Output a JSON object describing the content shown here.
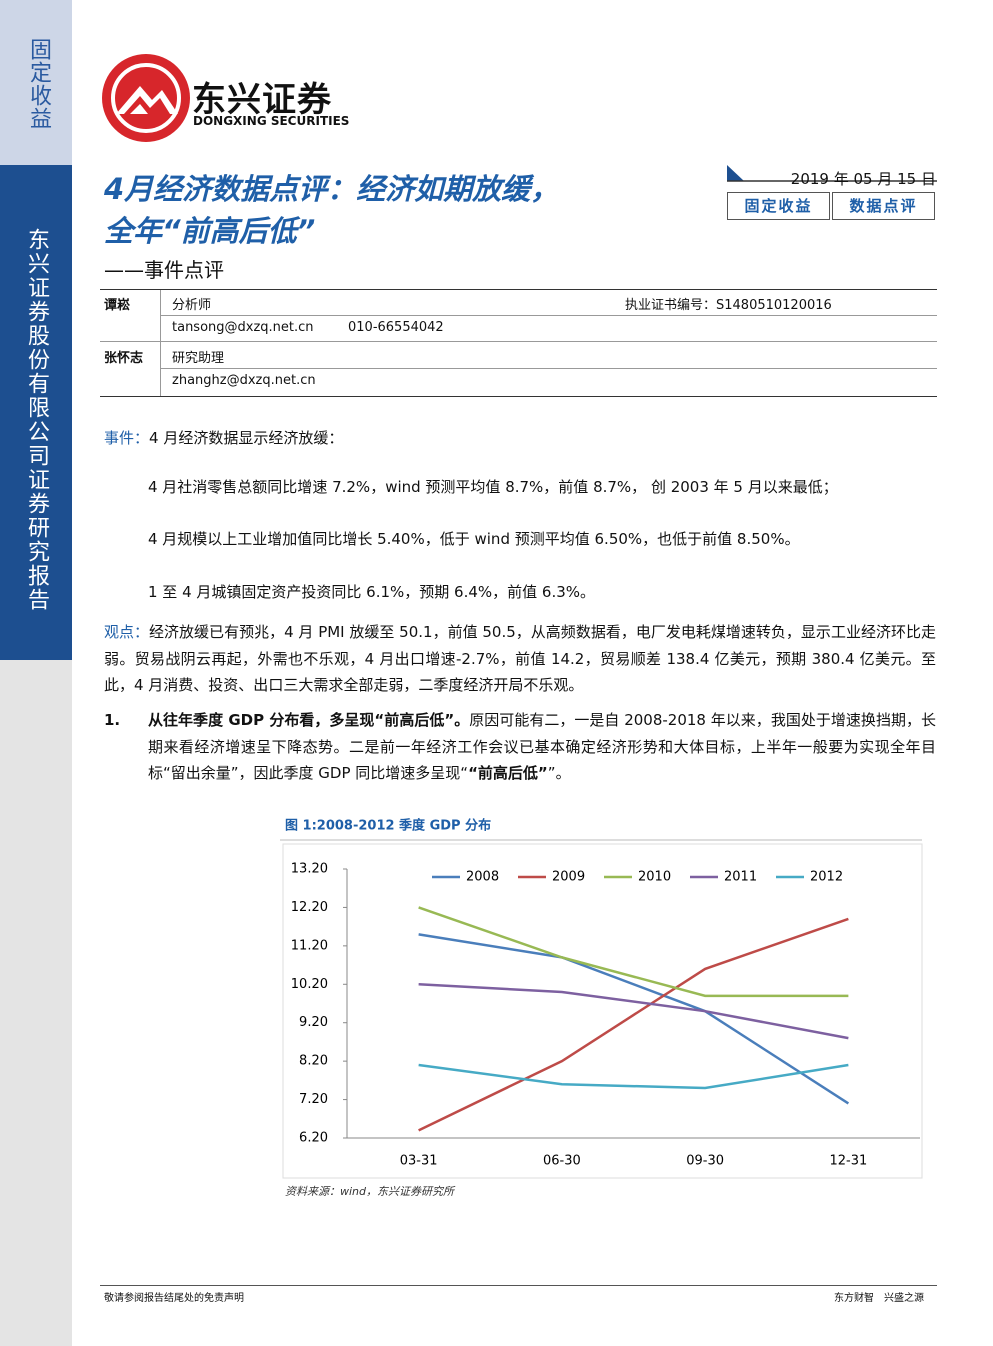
{
  "sidebar": {
    "category": "固定收益",
    "company": "东兴证券股份有限公司证券研究报告"
  },
  "logo": {
    "name": "东兴证券",
    "english": "DONGXING SECURITIES"
  },
  "header": {
    "title_line1": "4月经济数据点评：经济如期放缓，",
    "title_line2": "全年“前高后低”",
    "subtitle": "——事件点评",
    "date": "2019 年 05 月 15 日",
    "tags": [
      "固定收益",
      "数据点评"
    ]
  },
  "authors": [
    {
      "name": "谭崧",
      "role": "分析师",
      "license": "执业证书编号：S1480510120016",
      "email": "tansong@dxzq.net.cn",
      "phone": "010-66554042"
    },
    {
      "name": "张怀志",
      "role": "研究助理",
      "email": "zhanghz@dxzq.net.cn"
    }
  ],
  "event": {
    "label": "事件：",
    "text": "4 月经济数据显示经济放缓："
  },
  "event_items": [
    "4 月社消零售总额同比增速 7.2%，wind 预测平均值 8.7%，前值 8.7%， 创 2003 年 5 月以来最低；",
    "4 月规模以上工业增加值同比增长 5.40%，低于 wind 预测平均值 6.50%，也低于前值 8.50%。",
    "1 至 4 月城镇固定资产投资同比 6.1%，预期 6.4%，前值 6.3%。"
  ],
  "view": {
    "label": "观点：",
    "text": "经济放缓已有预兆，4 月 PMI 放缓至 50.1，前值 50.5，从高频数据看，电厂发电耗煤增速转负，显示工业经济环比走弱。贸易战阴云再起，外需也不乐观，4 月出口增速-2.7%，前值 14.2，贸易顺差 138.4 亿美元，预期 380.4 亿美元。至此，4 月消费、投资、出口三大需求全部走弱，二季度经济开局不乐观。"
  },
  "point1": {
    "number": "1.",
    "heading": "从往年季度 GDP 分布看，多呈现“前高后低”。",
    "text": "原因可能有二，一是自 2008-2018 年以来，我国处于增速换挡期，长期来看经济增速呈下降态势。二是前一年经济工作会议已基本确定经济形势和大体目标，上半年一般要为实现全年目标“留出余量”，因此季度 GDP 同比增速多呈现“",
    "emph": "“前高后低”",
    "tail": "”。"
  },
  "chart_data": {
    "type": "line",
    "title": "图 1:2008-2012 季度 GDP 分布",
    "categories": [
      "03-31",
      "06-30",
      "09-30",
      "12-31"
    ],
    "series": [
      {
        "name": "2008",
        "color": "#4a7ebb",
        "values": [
          11.5,
          10.9,
          9.5,
          7.1
        ]
      },
      {
        "name": "2009",
        "color": "#be4b48",
        "values": [
          6.4,
          8.2,
          10.6,
          11.9
        ]
      },
      {
        "name": "2010",
        "color": "#98b954",
        "values": [
          12.2,
          10.9,
          9.9,
          9.9
        ]
      },
      {
        "name": "2011",
        "color": "#7d60a0",
        "values": [
          10.2,
          10.0,
          9.5,
          8.8
        ]
      },
      {
        "name": "2012",
        "color": "#46aac5",
        "values": [
          8.1,
          7.6,
          7.5,
          8.1
        ]
      }
    ],
    "ylim": [
      6.2,
      13.2
    ],
    "yticks": [
      {
        "value": 6.2,
        "label": "6.20"
      },
      {
        "value": 7.2,
        "label": "7.20"
      },
      {
        "value": 8.2,
        "label": "8.20"
      },
      {
        "value": 9.2,
        "label": "9.20"
      },
      {
        "value": 10.2,
        "label": "10.20"
      },
      {
        "value": 11.2,
        "label": "11.20"
      },
      {
        "value": 12.2,
        "label": "12.20"
      },
      {
        "value": 13.2,
        "label": "13.20"
      }
    ],
    "grid": false,
    "legend": "top",
    "source": "资料来源：wind，东兴证券研究所"
  },
  "footer": {
    "disclaimer": "敬请参阅报告结尾处的免责声明",
    "slogan": "东方财智　兴盛之源"
  }
}
